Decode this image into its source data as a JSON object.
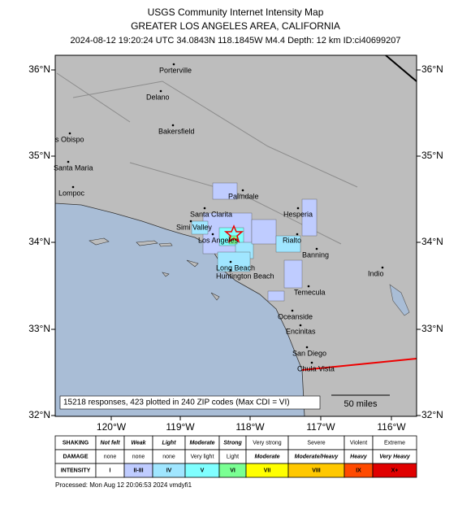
{
  "header": {
    "title": "USGS Community Internet Intensity Map",
    "region": "GREATER LOS ANGELES AREA, CALIFORNIA",
    "details": "2024-08-12 19:20:24 UTC 34.0843N 118.1845W M4.4 Depth: 12 km ID:ci40699207"
  },
  "map": {
    "lat_labels": [
      "36°N",
      "35°N",
      "34°N",
      "33°N",
      "32°N"
    ],
    "lon_labels": [
      "120°W",
      "119°W",
      "118°W",
      "117°W",
      "116°W"
    ],
    "cities": [
      "Porterville",
      "Delano",
      "Bakersfield",
      "s Obispo",
      "Santa Maria",
      "Lompoc",
      "Palmdale",
      "Santa Clarita",
      "Hesperia",
      "Simi Valley",
      "Los Angeles",
      "Rialto",
      "Banning",
      "Indio",
      "Long Beach",
      "Huntington Beach",
      "Temecula",
      "Oceanside",
      "Encinitas",
      "San Diego",
      "Chula Vista"
    ],
    "summary": "15218 responses, 423 plotted in 240 ZIP codes (Max CDI = VI)",
    "scale": "50 miles"
  },
  "legend": {
    "rows": [
      {
        "label": "SHAKING",
        "cells": [
          "Not felt",
          "Weak",
          "Light",
          "Moderate",
          "Strong",
          "Very strong",
          "Severe",
          "Violent",
          "Extreme"
        ]
      },
      {
        "label": "DAMAGE",
        "cells": [
          "none",
          "none",
          "none",
          "Very light",
          "Light",
          "Moderate",
          "Moderate/Heavy",
          "Heavy",
          "Very Heavy"
        ]
      },
      {
        "label": "INTENSITY",
        "cells": [
          "I",
          "II-III",
          "IV",
          "V",
          "VI",
          "VII",
          "VIII",
          "IX",
          "X+"
        ]
      }
    ]
  },
  "footer": "Processed: Mon Aug 12 20:06:53 2024 vmdyfi1"
}
